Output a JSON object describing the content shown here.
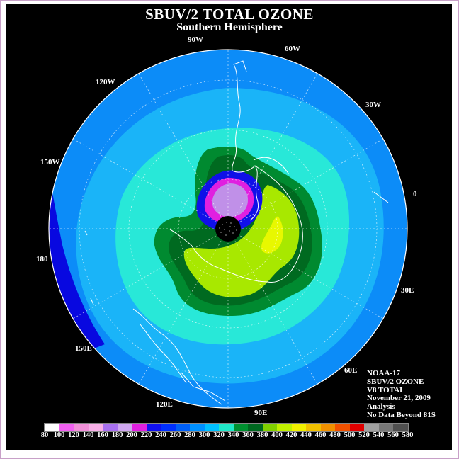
{
  "title": "SBUV/2 TOTAL OZONE",
  "subtitle": "Southern Hemisphere",
  "longitude_labels": [
    {
      "id": "90w",
      "text": "90W"
    },
    {
      "id": "60w",
      "text": "60W"
    },
    {
      "id": "30w",
      "text": "30W"
    },
    {
      "id": "0",
      "text": "0"
    },
    {
      "id": "30e",
      "text": "30E"
    },
    {
      "id": "60e",
      "text": "60E"
    },
    {
      "id": "90e",
      "text": "90E"
    },
    {
      "id": "120e",
      "text": "120E"
    },
    {
      "id": "150e",
      "text": "150E"
    },
    {
      "id": "180",
      "text": "180"
    },
    {
      "id": "150w",
      "text": "150W"
    },
    {
      "id": "120w",
      "text": "120W"
    }
  ],
  "info": {
    "satellite": "NOAA-17",
    "product": "SBUV/2 OZONE",
    "version": "V8 TOTAL",
    "date": "November 21, 2009",
    "type": "Analysis",
    "note": "No Data Beyond 81S"
  },
  "colorbar": {
    "labels": [
      "80",
      "100",
      "120",
      "140",
      "160",
      "180",
      "200",
      "220",
      "240",
      "260",
      "280",
      "300",
      "320",
      "340",
      "360",
      "380",
      "400",
      "420",
      "440",
      "460",
      "480",
      "500",
      "520",
      "540",
      "560",
      "580"
    ],
    "colors": [
      "#ffffff",
      "#f060f0",
      "#f090d8",
      "#f8b0e8",
      "#a870f0",
      "#d0a8f0",
      "#e020e0",
      "#1010f0",
      "#0030ff",
      "#0060f8",
      "#0090ff",
      "#00c0ff",
      "#20e8c8",
      "#009030",
      "#006820",
      "#80d000",
      "#c0f000",
      "#f0f000",
      "#f0c000",
      "#f09000",
      "#f05000",
      "#e00000",
      "#a0a0a0",
      "#787878",
      "#505050"
    ]
  },
  "map_colors": {
    "background": "#0c8cf8",
    "band_300": "#1ab4f8",
    "band_320": "#28e8d8",
    "band_340": "#008a30",
    "band_360": "#006a20",
    "band_380": "#a8e800",
    "band_400": "#e8f800",
    "hole_220": "#1010e8",
    "hole_200": "#e020e0",
    "hole_180": "#c090e8",
    "low_rim": "#0808e0"
  }
}
